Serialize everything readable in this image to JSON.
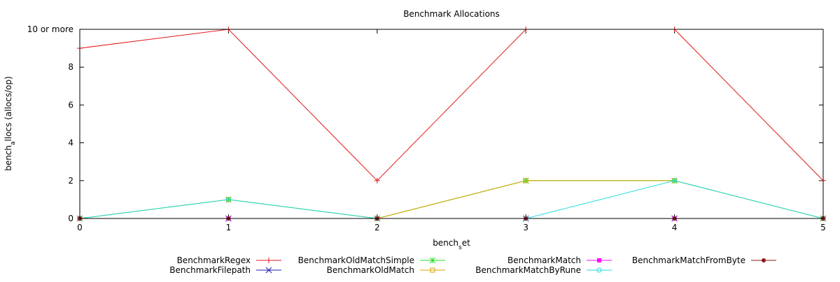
{
  "chart_data": {
    "type": "line",
    "title": "Benchmark Allocations",
    "xlabel": {
      "base": "bench",
      "sub": "s",
      "rest": "et"
    },
    "ylabel": {
      "base": "bench",
      "sub": "a",
      "rest": "llocs (allocs/op)"
    },
    "xlim": [
      0,
      5
    ],
    "ylim": [
      0,
      10
    ],
    "x_ticks": [
      {
        "value": 0,
        "label": "0"
      },
      {
        "value": 1,
        "label": "1"
      },
      {
        "value": 2,
        "label": "2"
      },
      {
        "value": 3,
        "label": "3"
      },
      {
        "value": 4,
        "label": "4"
      },
      {
        "value": 5,
        "label": "5"
      }
    ],
    "y_ticks": [
      {
        "value": 0,
        "label": "0"
      },
      {
        "value": 2,
        "label": "2"
      },
      {
        "value": 4,
        "label": "4"
      },
      {
        "value": 6,
        "label": "6"
      },
      {
        "value": 8,
        "label": "8"
      },
      {
        "value": 10,
        "label": "10 or more"
      }
    ],
    "x": [
      0,
      1,
      2,
      3,
      4,
      5
    ],
    "grid": false,
    "legend_placement": "bottom",
    "series": [
      {
        "name": "BenchmarkRegex",
        "values": [
          9,
          10,
          2,
          10,
          10,
          2
        ],
        "color": "#e41a1c",
        "marker": "plus"
      },
      {
        "name": "BenchmarkFilepath",
        "values": [
          0,
          0,
          0,
          0,
          0,
          0
        ],
        "color": "#1f1fb4",
        "marker": "cross"
      },
      {
        "name": "BenchmarkOldMatchSimple",
        "values": [
          0,
          1,
          0,
          2,
          2,
          0
        ],
        "color": "#22dd22",
        "marker": "star"
      },
      {
        "name": "BenchmarkOldMatch",
        "values": [
          0,
          1,
          0,
          2,
          2,
          0
        ],
        "color": "#d9a400",
        "marker": "square-open"
      },
      {
        "name": "BenchmarkMatch",
        "values": [
          0,
          0,
          0,
          0,
          0,
          0
        ],
        "color": "#ff00ff",
        "marker": "square-filled"
      },
      {
        "name": "BenchmarkMatchByRune",
        "values": [
          0,
          1,
          0,
          0,
          2,
          0
        ],
        "color": "#22dddd",
        "marker": "circle-open"
      },
      {
        "name": "BenchmarkMatchFromByte",
        "values": [
          0,
          0,
          0,
          0,
          0,
          0
        ],
        "color": "#8b1a1a",
        "marker": "circle-filled"
      }
    ]
  }
}
